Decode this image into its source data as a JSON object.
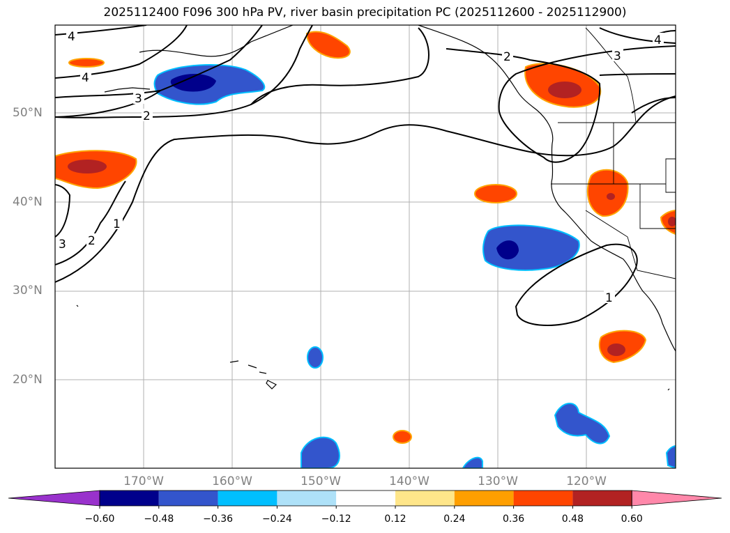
{
  "title": "2025112400 F096 300 hPa PV, river basin precipitation PC (2025112600 - 2025112900)",
  "lat_labels": [
    "50°N",
    "40°N",
    "30°N",
    "20°N"
  ],
  "lon_labels": [
    "170°W",
    "160°W",
    "150°W",
    "140°W",
    "130°W",
    "120°W"
  ],
  "contour_labels": [
    "4",
    "4",
    "3",
    "2",
    "3",
    "2",
    "1",
    "2",
    "3",
    "4",
    "1"
  ],
  "colorbar": {
    "ticks": [
      "−0.60",
      "−0.48",
      "−0.36",
      "−0.24",
      "−0.12",
      "0.12",
      "0.24",
      "0.36",
      "0.48",
      "0.60"
    ],
    "colors": [
      "#9932cc",
      "#00008b",
      "#3355cc",
      "#00bfff",
      "#aee1f8",
      "#ffffff",
      "#ffe68a",
      "#ff9f00",
      "#ff4500",
      "#b22222",
      "#ff88aa"
    ]
  },
  "palette": {
    "red": "#ff4500",
    "darkred": "#b22222",
    "orange": "#ffa500",
    "blue": "#3355cc",
    "navy": "#00008b",
    "cyan": "#00bfff"
  }
}
